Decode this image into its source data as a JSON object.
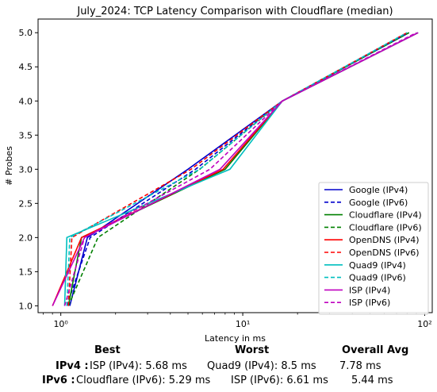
{
  "chart_data": {
    "type": "line",
    "title": "July_2024: TCP Latency Comparison with Cloudflare (median)",
    "xlabel": "Latency in ms",
    "ylabel": "# Probes",
    "xscale": "log",
    "xlim": [
      0.75,
      110
    ],
    "ylim": [
      0.9,
      5.2
    ],
    "xticks": [
      {
        "value": 1,
        "label": "10⁰"
      },
      {
        "value": 10,
        "label": "10¹"
      },
      {
        "value": 100,
        "label": "10²"
      }
    ],
    "yticks": [
      "1.0",
      "1.5",
      "2.0",
      "2.5",
      "3.0",
      "3.5",
      "4.0",
      "4.5",
      "5.0"
    ],
    "grid": false,
    "legend_position": "lower-right",
    "series": [
      {
        "name": "Google (IPv4)",
        "color": "#0000cc",
        "dash": "solid",
        "points": [
          [
            1.12,
            1
          ],
          [
            1.4,
            2
          ],
          [
            5,
            3
          ],
          [
            16.5,
            4
          ],
          [
            82,
            5
          ]
        ]
      },
      {
        "name": "Google (IPv6)",
        "color": "#0000cc",
        "dash": "dashed",
        "points": [
          [
            1.08,
            1
          ],
          [
            1.45,
            2
          ],
          [
            5.5,
            3
          ],
          [
            16.5,
            4
          ],
          [
            80,
            5
          ]
        ]
      },
      {
        "name": "Cloudflare (IPv4)",
        "color": "#008000",
        "dash": "solid",
        "points": [
          [
            1.1,
            1
          ],
          [
            1.3,
            2
          ],
          [
            8,
            3
          ],
          [
            16.5,
            4
          ],
          [
            92,
            5
          ]
        ]
      },
      {
        "name": "Cloudflare (IPv6)",
        "color": "#008000",
        "dash": "dashed",
        "points": [
          [
            1.1,
            1
          ],
          [
            1.6,
            2
          ],
          [
            5.8,
            3
          ],
          [
            16.5,
            4
          ],
          [
            82,
            5
          ]
        ]
      },
      {
        "name": "OpenDNS (IPv4)",
        "color": "#ff0000",
        "dash": "solid",
        "points": [
          [
            0.9,
            1
          ],
          [
            1.3,
            2
          ],
          [
            7.8,
            3
          ],
          [
            16.5,
            4
          ],
          [
            92,
            5
          ]
        ]
      },
      {
        "name": "OpenDNS (IPv6)",
        "color": "#ff0000",
        "dash": "dashed",
        "points": [
          [
            1.1,
            1
          ],
          [
            1.15,
            2
          ],
          [
            5.2,
            3
          ],
          [
            16.5,
            4
          ],
          [
            80,
            5
          ]
        ]
      },
      {
        "name": "Quad9 (IPv4)",
        "color": "#00bfbf",
        "dash": "solid",
        "points": [
          [
            1.05,
            1
          ],
          [
            1.08,
            2
          ],
          [
            8.5,
            3
          ],
          [
            16.5,
            4
          ],
          [
            92,
            5
          ]
        ]
      },
      {
        "name": "Quad9 (IPv6)",
        "color": "#00bfbf",
        "dash": "dashed",
        "points": [
          [
            1.08,
            1
          ],
          [
            1.12,
            2
          ],
          [
            5.8,
            3
          ],
          [
            16.5,
            4
          ],
          [
            80,
            5
          ]
        ]
      },
      {
        "name": "ISP (IPv4)",
        "color": "#bf00bf",
        "dash": "solid",
        "points": [
          [
            0.9,
            1
          ],
          [
            1.35,
            2
          ],
          [
            7.5,
            3
          ],
          [
            16.5,
            4
          ],
          [
            92,
            5
          ]
        ]
      },
      {
        "name": "ISP (IPv6)",
        "color": "#bf00bf",
        "dash": "dashed",
        "points": [
          [
            1.05,
            1
          ],
          [
            1.35,
            2
          ],
          [
            6.6,
            3
          ],
          [
            16.5,
            4
          ],
          [
            90,
            5
          ]
        ]
      }
    ]
  },
  "stats": {
    "headers": {
      "best": "Best",
      "worst": "Worst",
      "avg": "Overall Avg"
    },
    "ipv4": {
      "label": "IPv4 :",
      "best": "ISP (IPv4): 5.68 ms",
      "worst": "Quad9 (IPv4): 8.5 ms",
      "avg": "7.78 ms"
    },
    "ipv6": {
      "label": "IPv6 :",
      "best": "Cloudflare (IPv6): 5.29 ms",
      "worst": "ISP (IPv6): 6.61 ms",
      "avg": "5.44 ms"
    }
  }
}
